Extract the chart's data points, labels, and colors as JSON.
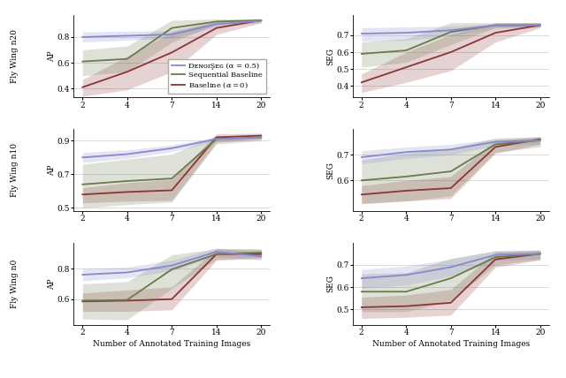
{
  "x_ticks": [
    2,
    4,
    7,
    14,
    20
  ],
  "colors": {
    "denoiseg": "#8888cc",
    "sequential": "#6b7a4a",
    "baseline": "#8b3535"
  },
  "alpha_fill": 0.22,
  "row_labels": [
    "Fly Wing n20",
    "Fly Wing n10",
    "Fly Wing n0"
  ],
  "ylabel_left": "AP",
  "ylabel_right": "SEG",
  "xlabel": "Number of Annotated Training Images",
  "panels": {
    "n20_ap": {
      "denoiseg_mean": [
        0.8,
        0.81,
        0.82,
        0.9,
        0.925
      ],
      "denoiseg_lo": [
        0.76,
        0.775,
        0.79,
        0.88,
        0.91
      ],
      "denoiseg_hi": [
        0.84,
        0.845,
        0.85,
        0.92,
        0.935
      ],
      "seq_mean": [
        0.61,
        0.63,
        0.87,
        0.92,
        0.93
      ],
      "seq_lo": [
        0.5,
        0.53,
        0.76,
        0.9,
        0.92
      ],
      "seq_hi": [
        0.7,
        0.73,
        0.93,
        0.94,
        0.94
      ],
      "base_mean": [
        0.41,
        0.53,
        0.68,
        0.87,
        0.93
      ],
      "base_lo": [
        0.34,
        0.39,
        0.53,
        0.82,
        0.91
      ],
      "base_hi": [
        0.47,
        0.65,
        0.84,
        0.92,
        0.94
      ],
      "ylim": [
        0.33,
        0.97
      ],
      "yticks": [
        0.4,
        0.6,
        0.8
      ]
    },
    "n20_seg": {
      "denoiseg_mean": [
        0.71,
        0.715,
        0.73,
        0.76,
        0.76
      ],
      "denoiseg_lo": [
        0.665,
        0.67,
        0.695,
        0.745,
        0.75
      ],
      "denoiseg_hi": [
        0.745,
        0.75,
        0.755,
        0.77,
        0.775
      ],
      "seq_mean": [
        0.59,
        0.61,
        0.72,
        0.76,
        0.76
      ],
      "seq_lo": [
        0.51,
        0.54,
        0.645,
        0.745,
        0.75
      ],
      "seq_hi": [
        0.66,
        0.68,
        0.775,
        0.775,
        0.775
      ],
      "base_mean": [
        0.42,
        0.51,
        0.6,
        0.715,
        0.76
      ],
      "base_lo": [
        0.36,
        0.42,
        0.49,
        0.66,
        0.745
      ],
      "base_hi": [
        0.47,
        0.6,
        0.705,
        0.775,
        0.775
      ],
      "ylim": [
        0.33,
        0.82
      ],
      "yticks": [
        0.4,
        0.5,
        0.6,
        0.7
      ]
    },
    "n10_ap": {
      "denoiseg_mean": [
        0.8,
        0.82,
        0.855,
        0.91,
        0.92
      ],
      "denoiseg_lo": [
        0.77,
        0.795,
        0.835,
        0.895,
        0.91
      ],
      "denoiseg_hi": [
        0.83,
        0.845,
        0.875,
        0.92,
        0.93
      ],
      "seq_mean": [
        0.64,
        0.66,
        0.675,
        0.91,
        0.92
      ],
      "seq_lo": [
        0.5,
        0.52,
        0.535,
        0.88,
        0.9
      ],
      "seq_hi": [
        0.76,
        0.79,
        0.82,
        0.93,
        0.93
      ],
      "base_mean": [
        0.58,
        0.595,
        0.605,
        0.92,
        0.93
      ],
      "base_lo": [
        0.53,
        0.54,
        0.545,
        0.89,
        0.91
      ],
      "base_hi": [
        0.62,
        0.65,
        0.67,
        0.94,
        0.945
      ],
      "ylim": [
        0.48,
        0.97
      ],
      "yticks": [
        0.5,
        0.7,
        0.9
      ]
    },
    "n10_seg": {
      "denoiseg_mean": [
        0.69,
        0.71,
        0.72,
        0.75,
        0.755
      ],
      "denoiseg_lo": [
        0.665,
        0.685,
        0.7,
        0.735,
        0.74
      ],
      "denoiseg_hi": [
        0.715,
        0.73,
        0.74,
        0.76,
        0.765
      ],
      "seq_mean": [
        0.6,
        0.615,
        0.635,
        0.74,
        0.755
      ],
      "seq_lo": [
        0.51,
        0.52,
        0.54,
        0.71,
        0.73
      ],
      "seq_hi": [
        0.68,
        0.705,
        0.725,
        0.765,
        0.77
      ],
      "base_mean": [
        0.545,
        0.56,
        0.57,
        0.73,
        0.76
      ],
      "base_lo": [
        0.51,
        0.52,
        0.53,
        0.705,
        0.74
      ],
      "base_hi": [
        0.58,
        0.6,
        0.615,
        0.755,
        0.77
      ],
      "ylim": [
        0.48,
        0.8
      ],
      "yticks": [
        0.6,
        0.7
      ]
    },
    "n0_ap": {
      "denoiseg_mean": [
        0.76,
        0.775,
        0.82,
        0.91,
        0.88
      ],
      "denoiseg_lo": [
        0.72,
        0.74,
        0.785,
        0.88,
        0.855
      ],
      "denoiseg_hi": [
        0.8,
        0.81,
        0.855,
        0.935,
        0.905
      ],
      "seq_mean": [
        0.59,
        0.595,
        0.795,
        0.895,
        0.905
      ],
      "seq_lo": [
        0.47,
        0.465,
        0.67,
        0.86,
        0.875
      ],
      "seq_hi": [
        0.7,
        0.715,
        0.89,
        0.93,
        0.93
      ],
      "base_mean": [
        0.585,
        0.59,
        0.6,
        0.895,
        0.895
      ],
      "base_lo": [
        0.52,
        0.52,
        0.53,
        0.855,
        0.865
      ],
      "base_hi": [
        0.64,
        0.66,
        0.68,
        0.93,
        0.925
      ],
      "ylim": [
        0.43,
        0.97
      ],
      "yticks": [
        0.6,
        0.8
      ]
    },
    "n0_seg": {
      "denoiseg_mean": [
        0.64,
        0.655,
        0.69,
        0.745,
        0.75
      ],
      "denoiseg_lo": [
        0.595,
        0.61,
        0.65,
        0.72,
        0.728
      ],
      "denoiseg_hi": [
        0.68,
        0.695,
        0.725,
        0.765,
        0.768
      ],
      "seq_mean": [
        0.58,
        0.58,
        0.64,
        0.735,
        0.75
      ],
      "seq_lo": [
        0.49,
        0.49,
        0.54,
        0.7,
        0.725
      ],
      "seq_hi": [
        0.66,
        0.665,
        0.73,
        0.762,
        0.765
      ],
      "base_mean": [
        0.51,
        0.515,
        0.53,
        0.725,
        0.75
      ],
      "base_lo": [
        0.46,
        0.465,
        0.475,
        0.69,
        0.722
      ],
      "base_hi": [
        0.555,
        0.565,
        0.59,
        0.758,
        0.765
      ],
      "ylim": [
        0.43,
        0.8
      ],
      "yticks": [
        0.5,
        0.6,
        0.7
      ]
    }
  }
}
